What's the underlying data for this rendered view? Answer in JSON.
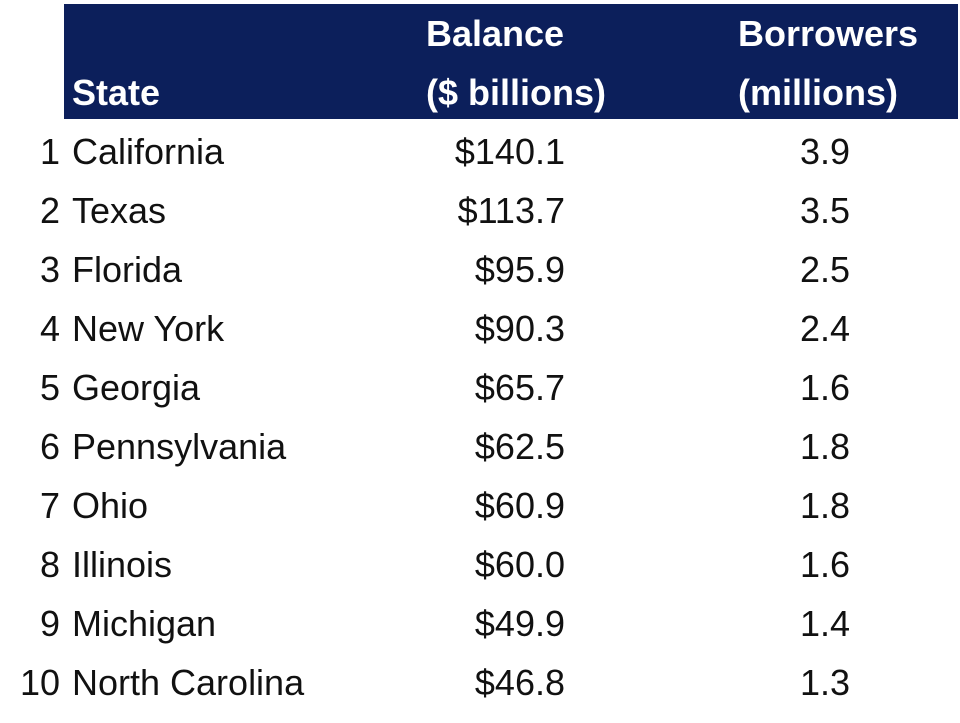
{
  "header": {
    "state": "State",
    "balance_line1": "Balance",
    "balance_line2": "($ billions)",
    "borrowers_line1": "Borrowers",
    "borrowers_line2": "(millions)"
  },
  "colors": {
    "header_background": "#0c1f5b",
    "header_text": "#ffffff",
    "body_text": "#111111"
  },
  "rows": [
    {
      "rank": "1",
      "state": "California",
      "balance": "$140.1",
      "borrowers": "3.9"
    },
    {
      "rank": "2",
      "state": "Texas",
      "balance": "$113.7",
      "borrowers": "3.5"
    },
    {
      "rank": "3",
      "state": "Florida",
      "balance": "$95.9",
      "borrowers": "2.5"
    },
    {
      "rank": "4",
      "state": "New York",
      "balance": "$90.3",
      "borrowers": "2.4"
    },
    {
      "rank": "5",
      "state": "Georgia",
      "balance": "$65.7",
      "borrowers": "1.6"
    },
    {
      "rank": "6",
      "state": "Pennsylvania",
      "balance": "$62.5",
      "borrowers": "1.8"
    },
    {
      "rank": "7",
      "state": "Ohio",
      "balance": "$60.9",
      "borrowers": "1.8"
    },
    {
      "rank": "8",
      "state": "Illinois",
      "balance": "$60.0",
      "borrowers": "1.6"
    },
    {
      "rank": "9",
      "state": "Michigan",
      "balance": "$49.9",
      "borrowers": "1.4"
    },
    {
      "rank": "10",
      "state": "North Carolina",
      "balance": "$46.8",
      "borrowers": "1.3"
    }
  ]
}
